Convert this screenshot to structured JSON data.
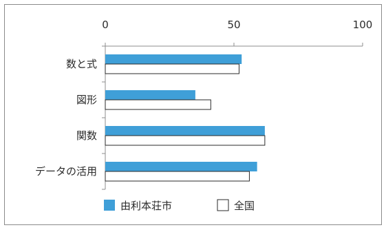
{
  "chart_data": {
    "type": "bar",
    "orientation": "horizontal",
    "categories": [
      "数と式",
      "図形",
      "関数",
      "データの活用"
    ],
    "series": [
      {
        "name": "由利本荘市",
        "values": [
          53,
          35,
          62,
          59
        ],
        "color": "#3f9fd8"
      },
      {
        "name": "全国",
        "values": [
          52,
          41,
          62,
          56
        ],
        "color": "#ffffff"
      }
    ],
    "xlim": [
      0,
      100
    ],
    "x_ticks": [
      "0",
      "50",
      "100"
    ],
    "x_tick_position": "top",
    "grid": false,
    "legend_position": "bottom"
  },
  "colors": {
    "frame": "#8a8a8a",
    "axis": "#8c8c8c",
    "bar_stroke": "#2a2a2a"
  }
}
